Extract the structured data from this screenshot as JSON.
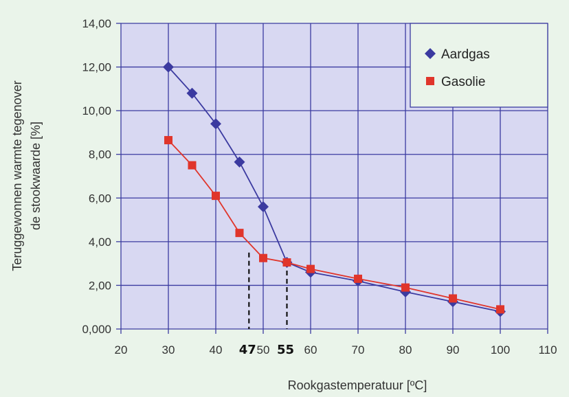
{
  "chart_data": {
    "type": "line",
    "title": "",
    "xlabel": "Rookgastemperatuur [ºC]",
    "ylabel_lines": [
      "Teruggewonnen warmte tegenover",
      "de stookwaarde [%]"
    ],
    "xlim": [
      20,
      110
    ],
    "ylim": [
      0,
      14
    ],
    "x_ticks": [
      20,
      30,
      40,
      50,
      60,
      70,
      80,
      90,
      100,
      110
    ],
    "y_ticks": [
      0,
      2,
      4,
      6,
      8,
      10,
      12,
      14
    ],
    "y_tick_labels": [
      "0,000",
      "2,00",
      "4,00",
      "6,00",
      "8,00",
      "10,00",
      "12,00",
      "14,00"
    ],
    "grid": true,
    "legend_position": "top-right",
    "series": [
      {
        "name": "Aardgas",
        "marker": "diamond",
        "color": "#3b3aa0",
        "x": [
          30,
          35,
          40,
          45,
          50,
          55,
          60,
          70,
          80,
          90,
          100
        ],
        "y": [
          12.0,
          10.8,
          9.4,
          7.65,
          5.6,
          3.05,
          2.6,
          2.2,
          1.7,
          1.25,
          0.8
        ]
      },
      {
        "name": "Gasolie",
        "marker": "square",
        "color": "#e0352b",
        "x": [
          30,
          35,
          40,
          45,
          50,
          55,
          60,
          70,
          80,
          90,
          100
        ],
        "y": [
          8.65,
          7.5,
          6.1,
          4.4,
          3.25,
          3.05,
          2.75,
          2.3,
          1.9,
          1.4,
          0.9
        ]
      }
    ],
    "annotations": [
      {
        "text": "47",
        "x": 47,
        "y_from": 3.5
      },
      {
        "text": "55",
        "x": 55,
        "y_from": 3.05
      }
    ]
  },
  "colors": {
    "plot_background": "#d8d8f2",
    "grid": "#3a3aa0",
    "legend_background": "#eaf4ea",
    "page_background": "#eaf4ea"
  }
}
